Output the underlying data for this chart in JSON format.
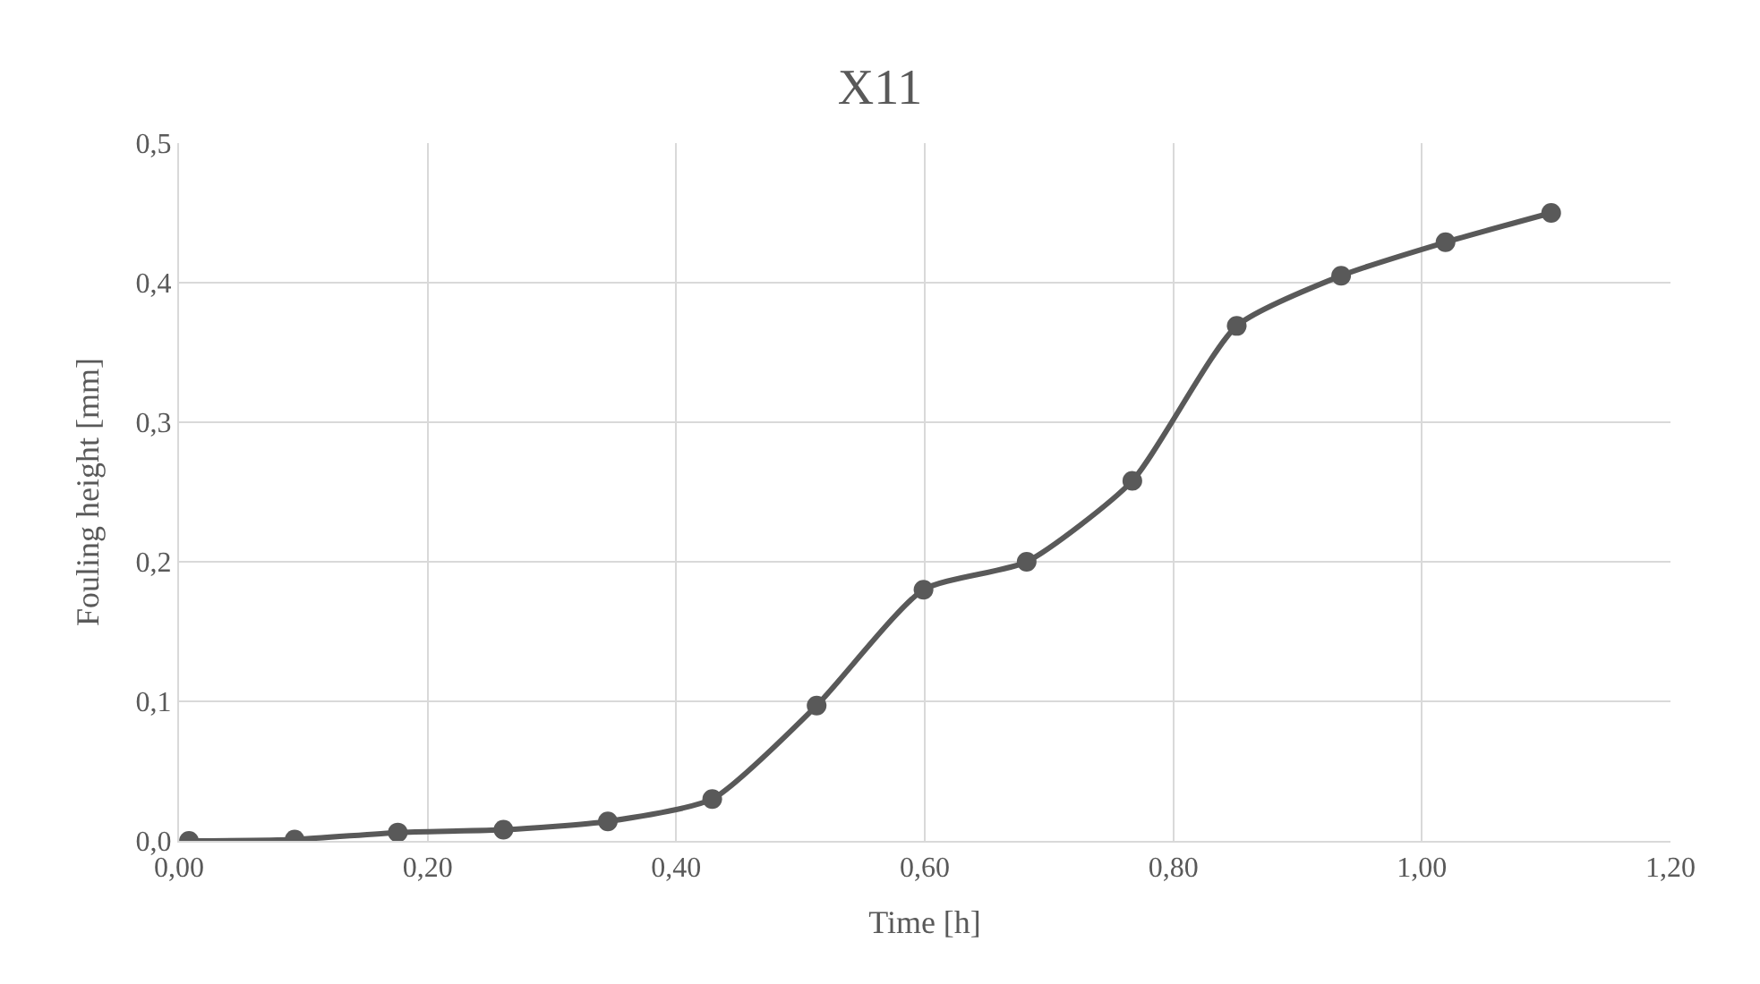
{
  "chart_data": {
    "type": "line",
    "title": "X11",
    "xlabel": "Time [h]",
    "ylabel": "Fouling height [mm]",
    "x": [
      0.008,
      0.093,
      0.176,
      0.261,
      0.345,
      0.429,
      0.513,
      0.599,
      0.682,
      0.767,
      0.851,
      0.935,
      1.019,
      1.104
    ],
    "series": [
      {
        "color": "#595959",
        "values": [
          0.0,
          0.001,
          0.006,
          0.008,
          0.014,
          0.03,
          0.097,
          0.18,
          0.2,
          0.258,
          0.369,
          0.405,
          0.429,
          0.45
        ]
      }
    ],
    "xlim": [
      0,
      1.2
    ],
    "xticks": [
      {
        "value": 0,
        "label": "0,00"
      },
      {
        "value": 0.2,
        "label": "0,20"
      },
      {
        "value": 0.4,
        "label": "0,40"
      },
      {
        "value": 0.6,
        "label": "0,60"
      },
      {
        "value": 0.8,
        "label": "0,80"
      },
      {
        "value": 1.0,
        "label": "1,00"
      },
      {
        "value": 1.2,
        "label": "1,20"
      }
    ],
    "ylim": [
      0,
      0.5
    ],
    "yticks": [
      {
        "value": 0,
        "label": "0,0"
      },
      {
        "value": 0.1,
        "label": "0,1"
      },
      {
        "value": 0.2,
        "label": "0,2"
      },
      {
        "value": 0.3,
        "label": "0,3"
      },
      {
        "value": 0.4,
        "label": "0,4"
      },
      {
        "value": 0.5,
        "label": "0,5"
      }
    ],
    "grid": true,
    "marker": "circle",
    "line_style": "solid"
  }
}
